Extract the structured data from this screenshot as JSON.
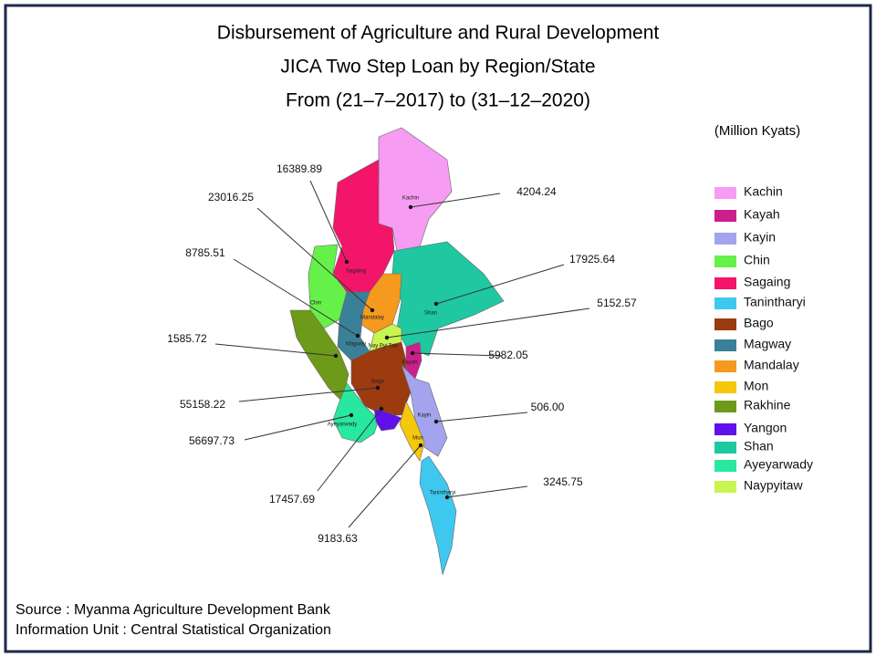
{
  "title": [
    "Disbursement of Agriculture and Rural Development",
    "JICA Two Step Loan by Region/State",
    "From (21–7–2017) to (31–12–2020)"
  ],
  "unit": "(Million  Kyats)",
  "legend": [
    {
      "name": "Kachin",
      "color": "#f79cf3"
    },
    {
      "name": "Kayah",
      "color": "#cc1e8c"
    },
    {
      "name": "Kayin",
      "color": "#a3a3ee"
    },
    {
      "name": "Chin",
      "color": "#66f04a"
    },
    {
      "name": "Sagaing",
      "color": "#f2156a"
    },
    {
      "name": "Tanintharyi",
      "color": "#3fc8ef"
    },
    {
      "name": "Bago",
      "color": "#9c3a10"
    },
    {
      "name": "Magway",
      "color": "#3a8098"
    },
    {
      "name": "Mandalay",
      "color": "#f59a1e"
    },
    {
      "name": "Mon",
      "color": "#f5c80c"
    },
    {
      "name": "Rakhine",
      "color": "#6e9a1a"
    },
    {
      "name": "Yangon",
      "color": "#6010e8"
    },
    {
      "name": "Shan",
      "color": "#1fc8a0"
    },
    {
      "name": "Ayeyarwady",
      "color": "#28e8a0"
    },
    {
      "name": "Naypyitaw",
      "color": "#c8f550"
    }
  ],
  "map_labels": [
    "Kachin",
    "Sagaing",
    "Chin",
    "Mandalay",
    "Magway",
    "Shan",
    "Nay Pyi Taw",
    "Kayah",
    "Bago",
    "Ayeyarwady",
    "Kayin",
    "Mon",
    "Tanintharyi"
  ],
  "values": [
    "16389.89",
    "23016.25",
    "8785.51",
    "1585.72",
    "55158.22",
    "56697.73",
    "17457.69",
    "9183.63",
    "4204.24",
    "17925.64",
    "5152.57",
    "5982.05",
    "506.00",
    "3245.75"
  ],
  "footer": [
    "Source : Myanma Agriculture Development Bank",
    "Information Unit : Central Statistical Organization"
  ]
}
